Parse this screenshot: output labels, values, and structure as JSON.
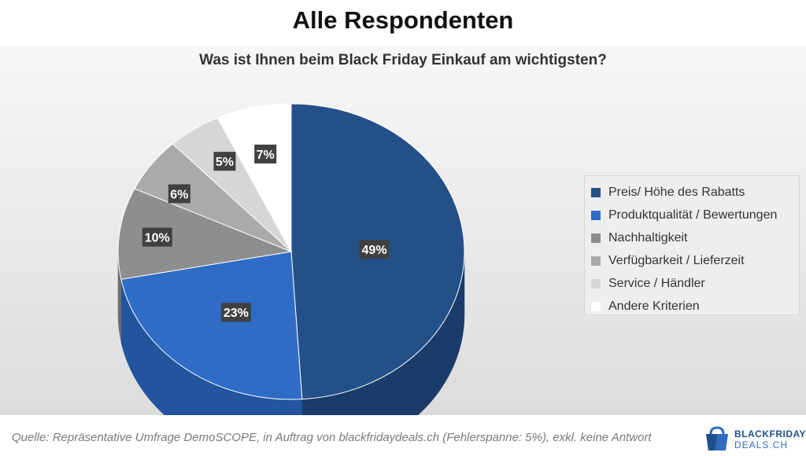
{
  "header": {
    "title": "Alle Respondenten"
  },
  "chart_data": {
    "type": "pie",
    "title": "Was ist Ihnen beim Black Friday Einkauf am wichtigsten?",
    "unit": "%",
    "legend_position": "right",
    "slices": [
      {
        "label": "Preis/ Höhe des Rabatts",
        "value": 49,
        "color": "#24508a",
        "side": "#1a3c6a"
      },
      {
        "label": "Produktqualität / Bewertungen",
        "value": 23,
        "color": "#2e6cc6",
        "side": "#22559e"
      },
      {
        "label": "Nachhaltigkeit",
        "value": 10,
        "color": "#8e8e8e",
        "side": "#6e6e6e"
      },
      {
        "label": "Verfügbarkeit / Lieferzeit",
        "value": 6,
        "color": "#aaaaaa",
        "side": "#888888"
      },
      {
        "label": "Service / Händler",
        "value": 5,
        "color": "#d6d6d6",
        "side": "#b5b5b5"
      },
      {
        "label": "Andere Kriterien",
        "value": 7,
        "color": "#ffffff",
        "side": "#d4d4d4"
      }
    ]
  },
  "footer": {
    "source": "Quelle: Repräsentative Umfrage DemoSCOPE, in Auftrag von blackfridaydeals.ch (Fehlerspanne: 5%), exkl. keine Antwort",
    "brand_top": "BLACKFRIDAY",
    "brand_bottom": "DEALS.CH",
    "brand_color": "#2f6bbf"
  }
}
